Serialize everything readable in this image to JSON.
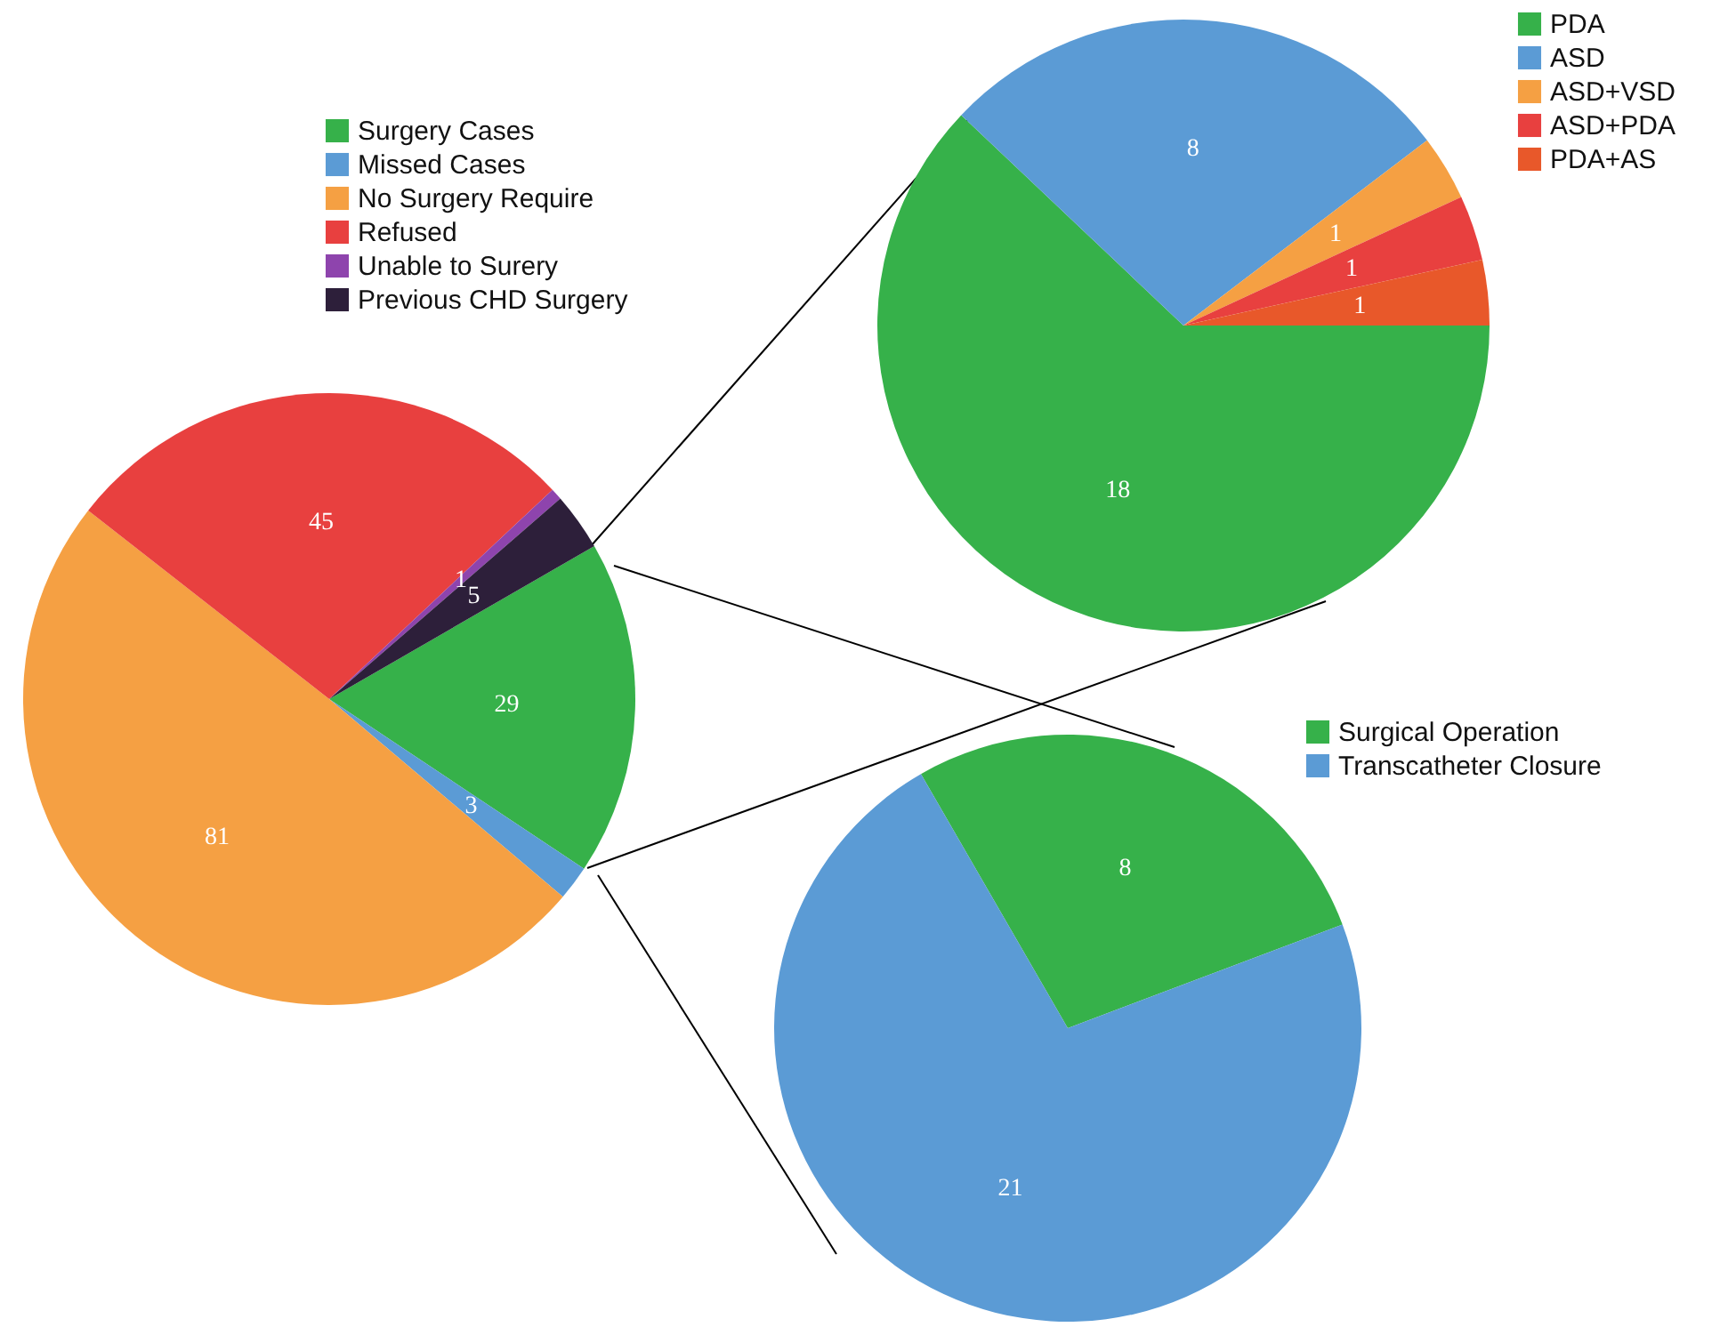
{
  "chart_data": [
    {
      "type": "pie",
      "categories": [
        "Surgery Cases",
        "Missed Cases",
        "No Surgery Require",
        "Refused",
        "Unable to Surery",
        "Previous CHD Surgery"
      ],
      "values": [
        29,
        3,
        81,
        45,
        1,
        5
      ],
      "colors": [
        "#36b14a",
        "#5b9bd5",
        "#f5a043",
        "#e8403f",
        "#8e44ad",
        "#2d1f3a"
      ],
      "data_labels": true,
      "legend": "top"
    },
    {
      "type": "pie",
      "categories": [
        "PDA",
        "ASD",
        "ASD+VSD",
        "ASD+PDA",
        "PDA+AS"
      ],
      "values": [
        18,
        8,
        1,
        1,
        1
      ],
      "colors": [
        "#36b14a",
        "#5b9bd5",
        "#f5a043",
        "#e8403f",
        "#e8582a"
      ],
      "data_labels": true,
      "legend": "top right"
    },
    {
      "type": "pie",
      "categories": [
        "Surgical Operation",
        "Transcatheter Closure"
      ],
      "values": [
        8,
        21
      ],
      "colors": [
        "#36b14a",
        "#5b9bd5"
      ],
      "data_labels": true,
      "legend": "top right"
    }
  ]
}
